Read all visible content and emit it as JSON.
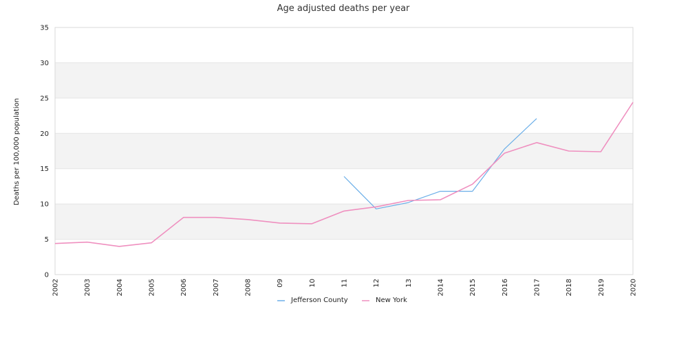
{
  "chart_data": {
    "type": "line",
    "title": "Age adjusted deaths per year",
    "xlabel": "",
    "ylabel": "Deaths per 100,000 population",
    "ylim": [
      0,
      35
    ],
    "yticks": [
      "0",
      "5",
      "10",
      "15",
      "20",
      "25",
      "30",
      "35"
    ],
    "categories": [
      "2002",
      "2003",
      "2004",
      "2005",
      "2006",
      "2007",
      "2008",
      "09",
      "10",
      "11",
      "12",
      "13",
      "2014",
      "2015",
      "2016",
      "2017",
      "2018",
      "2019",
      "2020"
    ],
    "grid": "alternating horizontal bands",
    "legend_position": "bottom-center",
    "series": [
      {
        "name": "Jefferson County",
        "color": "#6aaee8",
        "values": [
          null,
          null,
          null,
          null,
          null,
          null,
          null,
          null,
          null,
          13.9,
          9.3,
          10.2,
          11.8,
          11.8,
          17.8,
          22.1,
          null,
          null,
          null
        ]
      },
      {
        "name": "New York",
        "color": "#ef8fbf",
        "values": [
          4.4,
          4.6,
          4.0,
          4.5,
          8.1,
          8.1,
          7.8,
          7.3,
          7.2,
          9.0,
          9.6,
          10.5,
          10.6,
          12.8,
          17.2,
          18.7,
          17.5,
          17.4,
          24.4
        ]
      }
    ]
  }
}
